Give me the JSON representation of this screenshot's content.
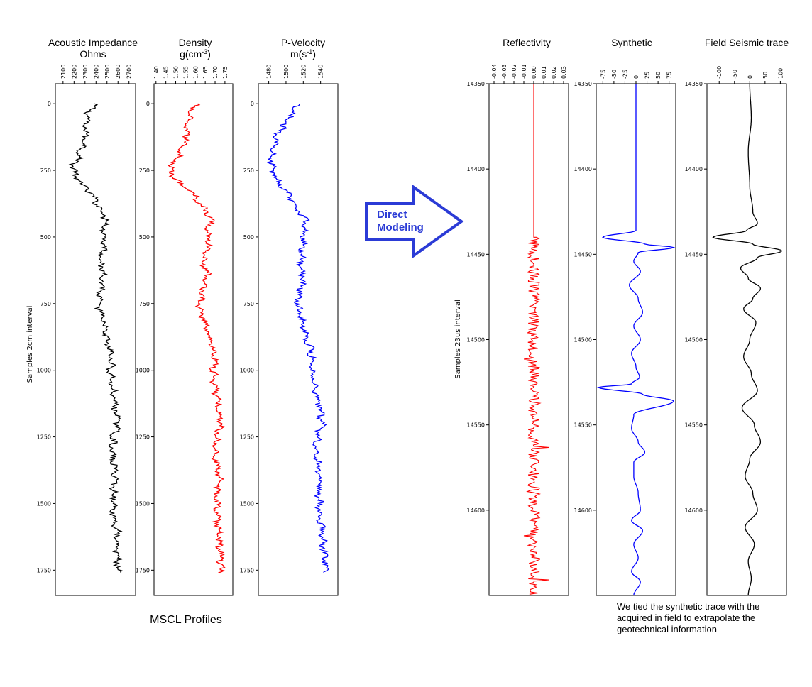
{
  "figure": {
    "left_ylabel": "Samples 2cm interval",
    "right_ylabel": "Samples 23us interval",
    "group_caption": "MSCL Profiles",
    "arrow_label_line1": "Direct",
    "arrow_label_line2": "Modeling",
    "note_lines": [
      "We tied the synthetic trace with the",
      "acquired in field to extrapolate the",
      "geotechnical information"
    ],
    "arrow_color": "#2b3bd6"
  },
  "chart_data": [
    {
      "type": "line",
      "title": "Acoustic Impedance",
      "title_line2": "Ohms",
      "color": "#000000",
      "xlim": [
        2030,
        2760
      ],
      "xticks": [
        2100,
        2200,
        2300,
        2400,
        2500,
        2600,
        2700
      ],
      "ylim": [
        1845,
        -75
      ],
      "yticks": [
        0,
        250,
        500,
        750,
        1000,
        1250,
        1500,
        1750
      ],
      "profile_depth": [
        0,
        40,
        80,
        120,
        160,
        200,
        240,
        280,
        320,
        360,
        400,
        440,
        480,
        520,
        560,
        600,
        640,
        680,
        720,
        760,
        800,
        840,
        880,
        920,
        960,
        1000,
        1050,
        1100,
        1150,
        1200,
        1250,
        1300,
        1350,
        1400,
        1450,
        1500,
        1550,
        1600,
        1650,
        1700,
        1760
      ],
      "profile_value": [
        2380,
        2330,
        2300,
        2310,
        2280,
        2240,
        2190,
        2220,
        2320,
        2390,
        2450,
        2500,
        2470,
        2480,
        2460,
        2440,
        2470,
        2460,
        2430,
        2420,
        2450,
        2480,
        2490,
        2520,
        2540,
        2530,
        2540,
        2560,
        2580,
        2600,
        2560,
        2540,
        2560,
        2580,
        2560,
        2560,
        2560,
        2590,
        2580,
        2600,
        2600
      ]
    },
    {
      "type": "line",
      "title": "Density",
      "title_line2": "g(cm",
      "title_line2_sup": "-3",
      "title_line2_end": ")",
      "color": "#ff0000",
      "xlim": [
        1.39,
        1.79
      ],
      "xticks": [
        1.4,
        1.45,
        1.5,
        1.55,
        1.6,
        1.65,
        1.7,
        1.75
      ],
      "ylim": [
        1845,
        -75
      ],
      "yticks": [
        0,
        250,
        500,
        750,
        1000,
        1250,
        1500,
        1750
      ],
      "profile_depth": [
        0,
        40,
        80,
        120,
        160,
        200,
        240,
        280,
        320,
        360,
        400,
        440,
        480,
        520,
        560,
        600,
        640,
        680,
        720,
        760,
        800,
        840,
        880,
        920,
        960,
        1000,
        1050,
        1100,
        1150,
        1200,
        1250,
        1300,
        1350,
        1400,
        1450,
        1500,
        1550,
        1600,
        1650,
        1700,
        1760
      ],
      "profile_value": [
        1.6,
        1.57,
        1.55,
        1.56,
        1.54,
        1.51,
        1.47,
        1.49,
        1.56,
        1.61,
        1.65,
        1.68,
        1.66,
        1.67,
        1.65,
        1.64,
        1.66,
        1.65,
        1.63,
        1.62,
        1.64,
        1.66,
        1.67,
        1.69,
        1.7,
        1.69,
        1.7,
        1.71,
        1.72,
        1.73,
        1.71,
        1.7,
        1.71,
        1.72,
        1.71,
        1.71,
        1.71,
        1.72,
        1.72,
        1.73,
        1.73
      ]
    },
    {
      "type": "line",
      "title": "P-Velocity",
      "title_line2": "m(s",
      "title_line2_sup": "-1",
      "title_line2_end": ")",
      "color": "#0000ff",
      "xlim": [
        1468,
        1560
      ],
      "xticks": [
        1480,
        1500,
        1520,
        1540
      ],
      "ylim": [
        1845,
        -75
      ],
      "yticks": [
        0,
        250,
        500,
        750,
        1000,
        1250,
        1500,
        1750
      ],
      "profile_depth": [
        0,
        40,
        80,
        120,
        160,
        200,
        240,
        280,
        320,
        360,
        400,
        440,
        480,
        520,
        560,
        600,
        640,
        680,
        720,
        760,
        800,
        840,
        880,
        920,
        960,
        1000,
        1050,
        1100,
        1150,
        1200,
        1250,
        1300,
        1350,
        1400,
        1450,
        1500,
        1550,
        1600,
        1650,
        1700,
        1760
      ],
      "profile_value": [
        1512,
        1506,
        1497,
        1490,
        1487,
        1484,
        1483,
        1488,
        1498,
        1507,
        1515,
        1523,
        1520,
        1521,
        1519,
        1517,
        1520,
        1518,
        1515,
        1514,
        1517,
        1521,
        1524,
        1528,
        1531,
        1530,
        1533,
        1536,
        1540,
        1542,
        1537,
        1535,
        1537,
        1540,
        1538,
        1538,
        1539,
        1542,
        1542,
        1545,
        1546
      ]
    },
    {
      "type": "line",
      "title": "Reflectivity",
      "color": "#ff0000",
      "xlim": [
        -0.045,
        0.035
      ],
      "xticks": [
        -0.04,
        -0.03,
        -0.02,
        -0.01,
        0.0,
        0.01,
        0.02,
        0.03
      ],
      "ylim": [
        14650,
        14350
      ],
      "yticks": [
        14350,
        14400,
        14450,
        14500,
        14550,
        14600
      ],
      "zero_until": 14440,
      "profile_depth": [
        14440,
        14650
      ],
      "profile_value": [
        0,
        0
      ]
    },
    {
      "type": "line",
      "title": "Synthetic",
      "color": "#0000ff",
      "xlim": [
        -90,
        90
      ],
      "xticks": [
        -75,
        -50,
        -25,
        0,
        25,
        50,
        75
      ],
      "ylim": [
        14650,
        14350
      ],
      "yticks": [
        14350,
        14400,
        14450,
        14500,
        14550,
        14600
      ],
      "x": [
        14350,
        14436,
        14440,
        14444,
        14446,
        14449,
        14454,
        14460,
        14468,
        14476,
        14484,
        14492,
        14500,
        14508,
        14516,
        14522,
        14526,
        14528,
        14532,
        14536,
        14544,
        14552,
        14560,
        14566,
        14572,
        14580,
        14590,
        14600,
        14606,
        14612,
        14620,
        14628,
        14636,
        14642,
        14650
      ],
      "y": [
        0,
        0,
        -75,
        20,
        85,
        5,
        -5,
        10,
        -15,
        5,
        15,
        -5,
        10,
        -10,
        0,
        8,
        -10,
        -85,
        15,
        85,
        -5,
        -10,
        5,
        20,
        -5,
        -5,
        5,
        10,
        -10,
        15,
        -5,
        5,
        -10,
        10,
        -5
      ]
    },
    {
      "type": "line",
      "title": "Field Seismic trace",
      "color": "#000000",
      "xlim": [
        -140,
        120
      ],
      "xticks": [
        -100,
        -50,
        0,
        50,
        100
      ],
      "ylim": [
        14650,
        14350
      ],
      "yticks": [
        14350,
        14400,
        14450,
        14500,
        14550,
        14600
      ],
      "x": [
        14350,
        14370,
        14390,
        14410,
        14425,
        14432,
        14436,
        14440,
        14444,
        14448,
        14452,
        14458,
        14464,
        14470,
        14476,
        14482,
        14490,
        14500,
        14510,
        14520,
        14530,
        14540,
        14550,
        14560,
        14570,
        14580,
        14590,
        14600,
        14610,
        14620,
        14630,
        14640,
        14650
      ],
      "y": [
        0,
        5,
        -5,
        0,
        10,
        25,
        -10,
        -120,
        10,
        105,
        25,
        -30,
        -5,
        35,
        10,
        -20,
        20,
        0,
        -20,
        5,
        25,
        -25,
        15,
        35,
        0,
        -15,
        10,
        25,
        -15,
        15,
        -5,
        5,
        -5
      ]
    }
  ]
}
